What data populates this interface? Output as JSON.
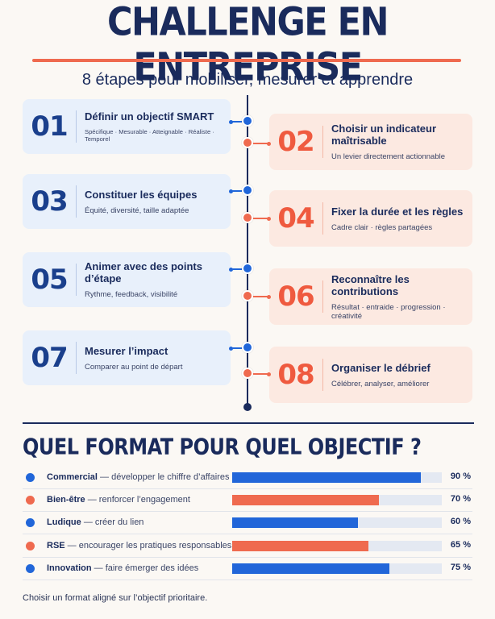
{
  "header": {
    "title": "CHALLENGE EN ENTREPRISE",
    "subtitle": "8 étapes pour mobiliser, mesurer et apprendre"
  },
  "colors": {
    "navy": "#1a2b5c",
    "blue": "#2166d9",
    "orange": "#ef6a4f"
  },
  "steps": [
    {
      "num": "01",
      "title": "Définir un objectif SMART",
      "desc": "Spécifique · Mesurable · Atteignable · Réaliste · Temporel"
    },
    {
      "num": "02",
      "title": "Choisir un indicateur maîtrisable",
      "desc": "Un levier directement actionnable"
    },
    {
      "num": "03",
      "title": "Constituer les équipes",
      "desc": "Équité, diversité, taille adaptée"
    },
    {
      "num": "04",
      "title": "Fixer la durée et les règles",
      "desc": "Cadre clair · règles partagées"
    },
    {
      "num": "05",
      "title": "Animer avec des points d’étape",
      "desc": "Rythme, feedback, visibilité"
    },
    {
      "num": "06",
      "title": "Reconnaître les contributions",
      "desc": "Résultat · entraide · progression · créativité"
    },
    {
      "num": "07",
      "title": "Mesurer l’impact",
      "desc": "Comparer au point de départ"
    },
    {
      "num": "08",
      "title": "Organiser le débrief",
      "desc": "Célébrer, analyser, améliorer"
    }
  ],
  "formats": {
    "title": "QUEL FORMAT POUR QUEL OBJECTIF ?",
    "rows": [
      {
        "name": "Commercial",
        "desc": " — développer le chiffre d’affaires",
        "value": 90,
        "pct": "90 %",
        "color": "blue"
      },
      {
        "name": "Bien-être",
        "desc": " — renforcer l’engagement",
        "value": 70,
        "pct": "70 %",
        "color": "orange"
      },
      {
        "name": "Ludique",
        "desc": " — créer du lien",
        "value": 60,
        "pct": "60 %",
        "color": "blue"
      },
      {
        "name": "RSE",
        "desc": " — encourager les pratiques responsables",
        "value": 65,
        "pct": "65 %",
        "color": "orange"
      },
      {
        "name": "Innovation",
        "desc": " — faire émerger des idées",
        "value": 75,
        "pct": "75 %",
        "color": "blue"
      }
    ],
    "footer": "Choisir un format aligné sur l’objectif prioritaire."
  }
}
